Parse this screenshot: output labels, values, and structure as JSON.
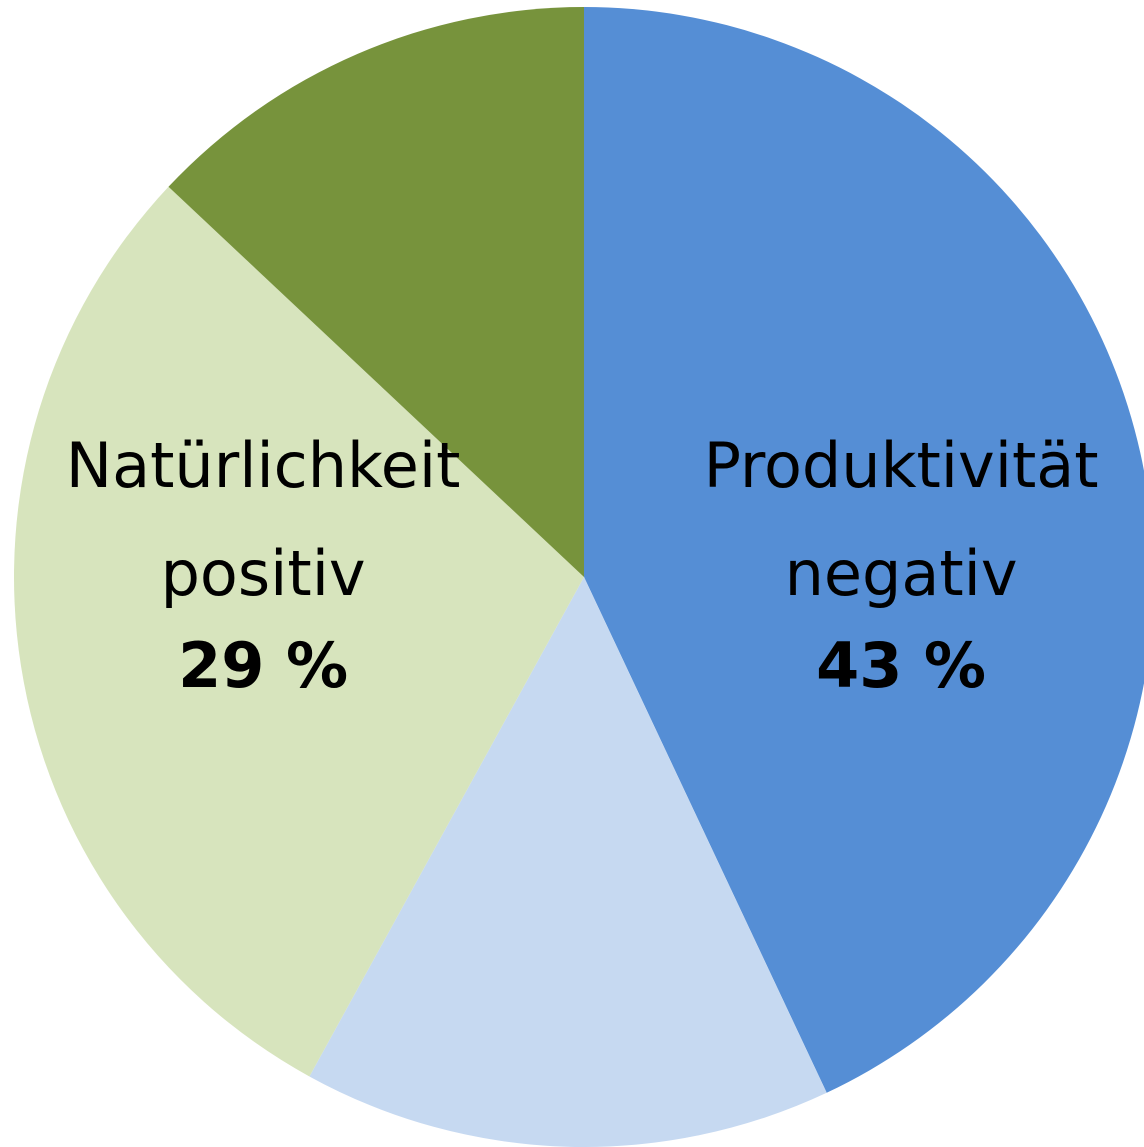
{
  "chart_data": {
    "type": "pie",
    "categories": [
      "Produktivität negativ",
      null,
      "Natürlichkeit positiv",
      null
    ],
    "values": [
      43,
      15,
      29,
      13
    ],
    "value_labels": [
      "43 %",
      null,
      "29 %",
      null
    ],
    "colors": [
      "#558ed5",
      "#c6d9f1",
      "#d7e4bd",
      "#77933c"
    ],
    "start_angle": 0,
    "direction": "clockwise"
  }
}
